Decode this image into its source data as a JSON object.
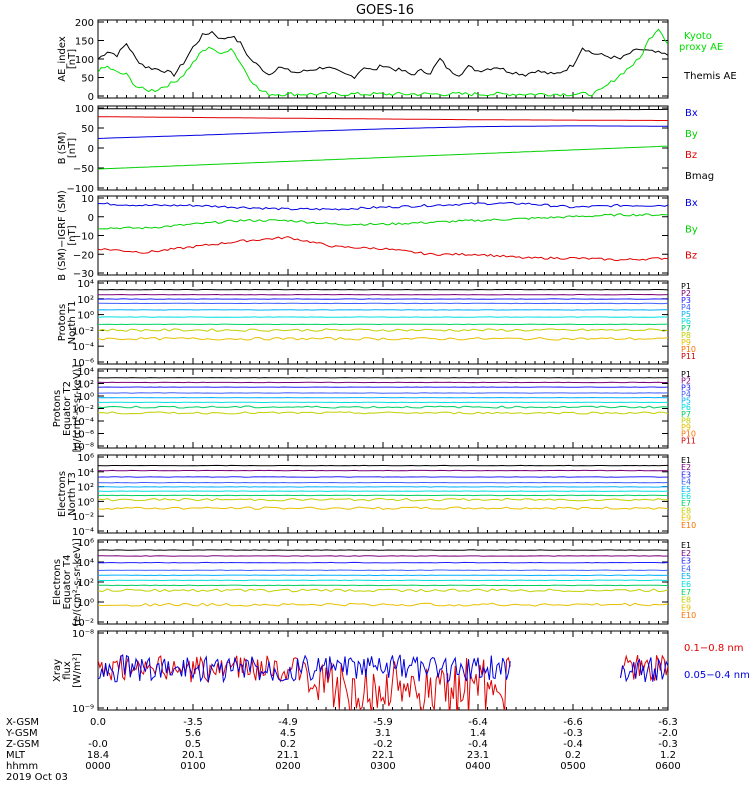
{
  "title": "GOES-16",
  "colors": {
    "black": "#000000",
    "red": "#e00000",
    "green": "#00d000",
    "blue": "#0000e0",
    "ae_green": "#00e000",
    "channels": [
      "#000000",
      "#7a007a",
      "#2020ff",
      "#4060ff",
      "#00b0ff",
      "#00e0e0",
      "#00d060",
      "#c0d000",
      "#e8c000",
      "#ff7000",
      "#d00000",
      "#a00000"
    ]
  },
  "chart_data": [
    {
      "type": "line",
      "ylabel": "AE_index [nT]",
      "ylim": [
        0,
        200
      ],
      "yticks": [
        "200",
        "150",
        "100",
        "50",
        "0"
      ],
      "legend": [
        {
          "label": "Kyoto",
          "color": "#00e000"
        },
        {
          "label": "proxy AE",
          "color": "#00e000"
        },
        {
          "label": "Themis AE",
          "color": "#000000"
        }
      ],
      "series": [
        {
          "color": "#000000",
          "x": [
            0,
            0.1,
            0.2,
            0.3,
            0.4,
            0.5,
            0.6,
            0.7,
            0.8,
            0.9,
            1.0,
            1.1,
            1.2,
            1.3,
            1.4,
            1.5,
            1.6,
            1.7,
            1.8,
            1.9,
            2.0,
            2.1,
            2.2,
            2.3,
            2.4,
            2.5,
            2.6,
            2.7,
            2.8,
            2.9,
            3.0,
            3.1,
            3.2,
            3.3,
            3.4,
            3.5,
            3.6,
            3.7,
            3.8,
            3.9,
            4.0,
            4.1,
            4.2,
            4.3,
            4.4,
            4.5,
            4.6,
            4.7,
            4.8,
            4.9,
            5.0,
            5.1,
            5.2,
            5.3,
            5.4,
            5.5,
            5.6,
            5.7,
            5.8,
            5.9,
            6.0
          ],
          "values": [
            100,
            120,
            110,
            140,
            100,
            80,
            75,
            70,
            60,
            90,
            130,
            160,
            170,
            150,
            160,
            140,
            100,
            80,
            60,
            80,
            70,
            65,
            70,
            75,
            80,
            70,
            60,
            55,
            80,
            70,
            85,
            75,
            70,
            60,
            70,
            65,
            100,
            70,
            60,
            80,
            70,
            75,
            80,
            70,
            65,
            60,
            70,
            65,
            60,
            70,
            85,
            130,
            115,
            110,
            105,
            100,
            115,
            125,
            120,
            115,
            110
          ]
        },
        {
          "color": "#00e000",
          "x": [
            0,
            0.1,
            0.2,
            0.3,
            0.4,
            0.5,
            0.6,
            0.7,
            0.8,
            0.9,
            1.0,
            1.1,
            1.2,
            1.3,
            1.4,
            1.5,
            1.6,
            1.7,
            1.8,
            1.9,
            2.0,
            2.1,
            2.2,
            2.3,
            2.4,
            2.5,
            2.6,
            2.7,
            2.8,
            2.9,
            3.0,
            3.1,
            3.2,
            3.3,
            3.4,
            3.5,
            3.6,
            3.7,
            3.8,
            3.9,
            4.0,
            4.1,
            4.2,
            4.3,
            4.4,
            4.5,
            4.6,
            4.7,
            4.8,
            4.9,
            5.0,
            5.1,
            5.2,
            5.3,
            5.4,
            5.5,
            5.6,
            5.7,
            5.8,
            5.9,
            6.0
          ],
          "values": [
            70,
            80,
            65,
            60,
            30,
            20,
            20,
            30,
            40,
            60,
            90,
            120,
            130,
            110,
            130,
            90,
            50,
            20,
            10,
            10,
            10,
            10,
            10,
            10,
            10,
            10,
            10,
            10,
            10,
            10,
            10,
            10,
            10,
            10,
            10,
            10,
            10,
            10,
            10,
            10,
            10,
            10,
            10,
            10,
            10,
            10,
            10,
            10,
            10,
            10,
            10,
            10,
            10,
            20,
            40,
            60,
            80,
            100,
            150,
            180,
            140
          ]
        }
      ]
    },
    {
      "type": "line",
      "ylabel": "B (SM) [nT]",
      "ylim": [
        -110,
        110
      ],
      "yticks": [
        "100",
        "50",
        "0",
        "−50",
        "−100"
      ],
      "legend": [
        {
          "label": "Bx",
          "color": "#0000e0"
        },
        {
          "label": "By",
          "color": "#00d000"
        },
        {
          "label": "Bz",
          "color": "#e00000"
        },
        {
          "label": "Bmag",
          "color": "#000000"
        }
      ],
      "series": [
        {
          "color": "#000000",
          "x": [
            0,
            1,
            2,
            3,
            4,
            5,
            6
          ],
          "values": [
            103,
            102,
            101,
            100,
            100,
            100,
            101
          ]
        },
        {
          "color": "#e00000",
          "x": [
            0,
            1,
            2,
            3,
            4,
            5,
            6
          ],
          "values": [
            82,
            80,
            78,
            76,
            74,
            73,
            72
          ]
        },
        {
          "color": "#0000e0",
          "x": [
            0,
            1,
            2,
            3,
            4,
            5,
            6
          ],
          "values": [
            25,
            33,
            42,
            50,
            56,
            58,
            57
          ]
        },
        {
          "color": "#00d000",
          "x": [
            0,
            1,
            2,
            3,
            4,
            5,
            6
          ],
          "values": [
            -55,
            -45,
            -35,
            -25,
            -15,
            -5,
            5
          ]
        }
      ]
    },
    {
      "type": "line",
      "ylabel": "B (SM)−IGRF (SM) [nT]",
      "ylim": [
        -30,
        12
      ],
      "yticks": [
        "10",
        "0",
        "−10",
        "−20",
        "−30"
      ],
      "legend": [
        {
          "label": "Bx",
          "color": "#0000e0"
        },
        {
          "label": "By",
          "color": "#00d000"
        },
        {
          "label": "Bz",
          "color": "#e00000"
        }
      ],
      "series": [
        {
          "color": "#0000e0",
          "x": [
            0,
            0.5,
            1,
            1.5,
            2,
            2.5,
            3,
            3.5,
            4,
            4.5,
            5,
            5.5,
            6
          ],
          "values": [
            8,
            7,
            7,
            6,
            5,
            5,
            6,
            7,
            8,
            8,
            6,
            7,
            7
          ]
        },
        {
          "color": "#00d000",
          "x": [
            0,
            0.5,
            1,
            1.5,
            2,
            2.5,
            3,
            3.5,
            4,
            4.5,
            5,
            5.5,
            6
          ],
          "values": [
            -5,
            -5,
            -3,
            -1,
            -1,
            -3,
            -3,
            -2,
            -1,
            0,
            1,
            2,
            2
          ]
        },
        {
          "color": "#e00000",
          "x": [
            0,
            0.5,
            1,
            1.5,
            2,
            2.5,
            3,
            3.5,
            4,
            4.5,
            5,
            5.5,
            6
          ],
          "values": [
            -16,
            -18,
            -15,
            -12,
            -10,
            -15,
            -16,
            -19,
            -19,
            -21,
            -21,
            -22,
            -21
          ]
        }
      ]
    },
    {
      "type": "line",
      "ylabel": "Protons North T1",
      "ylog": true,
      "yticks": [
        "10⁴",
        "10²",
        "10⁰",
        "10⁻²",
        "10⁻⁴",
        "10⁻⁶"
      ],
      "ylim": [
        -7,
        4.5
      ],
      "legend": [
        {
          "label": "P1"
        },
        {
          "label": "P2"
        },
        {
          "label": "P3"
        },
        {
          "label": "P4"
        },
        {
          "label": "P5"
        },
        {
          "label": "P6"
        },
        {
          "label": "P7"
        },
        {
          "label": "P8"
        },
        {
          "label": "P9"
        },
        {
          "label": "P10"
        },
        {
          "label": "P11"
        }
      ],
      "levels": [
        3.3,
        2.6,
        2.0,
        1.4,
        0.5,
        -0.5,
        -1.5,
        -2.3,
        -3.5
      ]
    },
    {
      "type": "line",
      "ylabel": "Protons Equator T2 [p/(cm²-s-sr-keV)]",
      "ylog": true,
      "yticks": [
        "10⁴",
        "10²",
        "10⁰",
        "10⁻²",
        "10⁻⁴",
        "10⁻⁶",
        "10⁻⁸"
      ],
      "ylim": [
        -9,
        4.5
      ],
      "legend": [
        {
          "label": "P1"
        },
        {
          "label": "P2"
        },
        {
          "label": "P3"
        },
        {
          "label": "P4"
        },
        {
          "label": "P5"
        },
        {
          "label": "P6"
        },
        {
          "label": "P7"
        },
        {
          "label": "P8"
        },
        {
          "label": "P9"
        },
        {
          "label": "P10"
        },
        {
          "label": "P11"
        }
      ],
      "levels": [
        3.0,
        2.2,
        1.4,
        0.4,
        -0.4,
        -1.2,
        -2.0,
        -3.0
      ]
    },
    {
      "type": "line",
      "ylabel": "Electrons North T3",
      "ylog": true,
      "yticks": [
        "10⁶",
        "10⁴",
        "10²",
        "10⁰",
        "10⁻²",
        "10⁻⁴"
      ],
      "ylim": [
        -4.5,
        6.5
      ],
      "legend": [
        {
          "label": "E1"
        },
        {
          "label": "E2"
        },
        {
          "label": "E3"
        },
        {
          "label": "E4"
        },
        {
          "label": "E5"
        },
        {
          "label": "E6"
        },
        {
          "label": "E7"
        },
        {
          "label": "E8"
        },
        {
          "label": "E9"
        },
        {
          "label": "E10"
        }
      ],
      "levels": [
        5.0,
        4.3,
        3.4,
        2.6,
        2.0,
        1.4,
        0.8,
        0.2,
        -1.0
      ]
    },
    {
      "type": "line",
      "ylabel": "Electrons Equator T4 [e/(cm²-s-sr-keV)]",
      "ylog": true,
      "yticks": [
        "10⁶",
        "10⁴",
        "10²",
        "10⁰",
        "10⁻²"
      ],
      "ylim": [
        -3.5,
        6.5
      ],
      "legend": [
        {
          "label": "E1"
        },
        {
          "label": "E2"
        },
        {
          "label": "E3"
        },
        {
          "label": "E4"
        },
        {
          "label": "E5"
        },
        {
          "label": "E6"
        },
        {
          "label": "E7"
        },
        {
          "label": "E8"
        },
        {
          "label": "E9"
        },
        {
          "label": "E10"
        }
      ],
      "levels": [
        5.3,
        4.6,
        3.8,
        2.9,
        2.3,
        1.7,
        1.1,
        0.5,
        -1.2
      ]
    },
    {
      "type": "line",
      "ylabel": "Xray flux [W/m²]",
      "ylog": true,
      "yticks": [
        "10⁻⁸",
        "10⁻⁹"
      ],
      "ylim": [
        -9,
        -8
      ],
      "legend": [
        {
          "label": "0.1−0.8 nm",
          "color": "#e00000"
        },
        {
          "label": "0.05−0.4 nm",
          "color": "#0000e0"
        }
      ]
    }
  ],
  "xaxis": {
    "rows": [
      {
        "label": "X-GSM",
        "values": [
          "0.0",
          "-3.5",
          "-4.9",
          "-5.9",
          "-6.4",
          "-6.6",
          "-6.3"
        ]
      },
      {
        "label": "Y-GSM",
        "values": [
          "",
          "5.6",
          "4.5",
          "3.1",
          "1.4",
          "-0.3",
          "-2.0"
        ]
      },
      {
        "label": "Z-GSM",
        "values": [
          "-0.0",
          "0.5",
          "0.2",
          "-0.2",
          "-0.4",
          "-0.4",
          "-0.3"
        ]
      },
      {
        "label": "MLT",
        "values": [
          "18.4",
          "20.1",
          "21.1",
          "22.1",
          "23.1",
          "0.2",
          "1.2"
        ]
      },
      {
        "label": "hhmm",
        "values": [
          "0000",
          "0100",
          "0200",
          "0300",
          "0400",
          "0500",
          "0600"
        ]
      }
    ],
    "date": "2019 Oct 03"
  }
}
